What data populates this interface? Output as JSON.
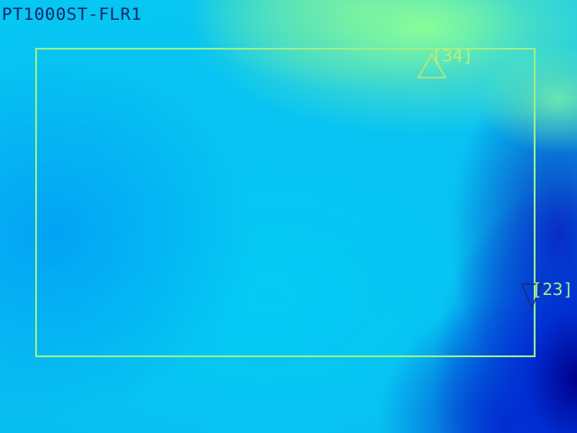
{
  "camera": {
    "title": "PT1000ST-FLR1"
  },
  "measurement": {
    "max_label": "[34]",
    "min_label": "[23]"
  },
  "colors": {
    "roi": "#9af08a",
    "max_marker": "#b8f07a",
    "min_marker": "#1a2a8a",
    "title": "#0a2a6a"
  },
  "icons": {
    "max": "triangle-up-icon",
    "min": "triangle-down-icon"
  }
}
